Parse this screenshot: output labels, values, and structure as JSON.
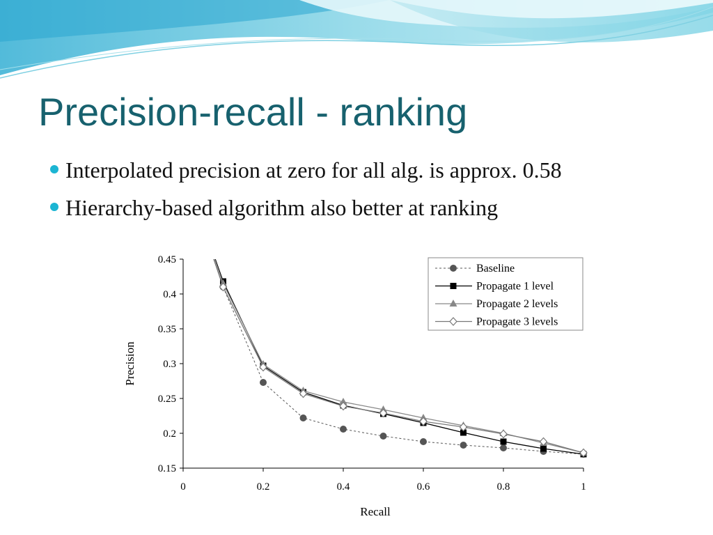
{
  "slide": {
    "title": "Precision-recall - ranking",
    "bullets": [
      "Interpolated precision at zero for all alg. is approx. 0.58",
      "Hierarchy-based algorithm also better at ranking"
    ],
    "colors": {
      "title": "#17616e",
      "bullet": "#1cb5d3",
      "wave": "#5cc6dd"
    }
  },
  "chart_data": {
    "type": "line",
    "xlabel": "Recall",
    "ylabel": "Precision",
    "xlim": [
      0,
      1
    ],
    "ylim": [
      0.15,
      0.45
    ],
    "x_ticks": [
      "0",
      "0.2",
      "0.4",
      "0.6",
      "0.8",
      "1"
    ],
    "y_ticks": [
      "0.15",
      "0.2",
      "0.25",
      "0.3",
      "0.35",
      "0.4",
      "0.45"
    ],
    "x": [
      0.0,
      0.1,
      0.2,
      0.3,
      0.4,
      0.5,
      0.6,
      0.7,
      0.8,
      0.9,
      1.0
    ],
    "legend_position": "top-right",
    "grid": false,
    "series": [
      {
        "name": "Baseline",
        "marker": "circle",
        "line": "dashed",
        "color": "#555555",
        "values": [
          0.58,
          0.41,
          0.273,
          0.222,
          0.206,
          0.196,
          0.188,
          0.183,
          0.179,
          0.174,
          0.17
        ]
      },
      {
        "name": "Propagate 1 level",
        "marker": "square",
        "line": "solid",
        "color": "#000000",
        "values": [
          0.58,
          0.418,
          0.297,
          0.259,
          0.24,
          0.228,
          0.215,
          0.201,
          0.188,
          0.178,
          0.17
        ]
      },
      {
        "name": "Propagate 2 levels",
        "marker": "triangle",
        "line": "solid",
        "color": "#888888",
        "values": [
          0.58,
          0.415,
          0.299,
          0.261,
          0.245,
          0.234,
          0.222,
          0.211,
          0.2,
          0.186,
          0.172
        ]
      },
      {
        "name": "Propagate 3 levels",
        "marker": "diamond",
        "line": "solid",
        "color": "#777777",
        "values": [
          0.58,
          0.41,
          0.295,
          0.257,
          0.239,
          0.229,
          0.217,
          0.209,
          0.199,
          0.188,
          0.172
        ]
      }
    ]
  }
}
